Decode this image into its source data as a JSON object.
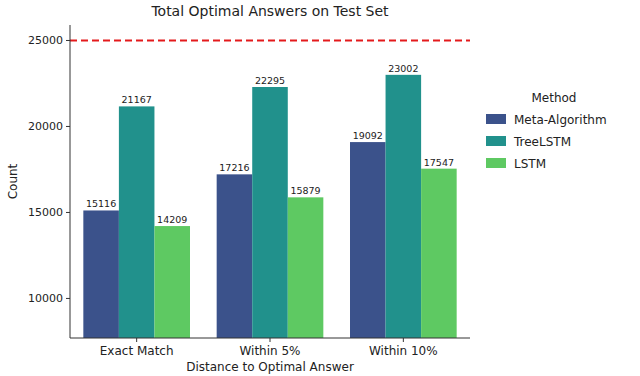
{
  "chart_data": {
    "type": "bar",
    "title": "Total Optimal Answers on Test Set",
    "x_label": "Distance to Optimal Answer",
    "y_label": "Count",
    "categories": [
      "Exact Match",
      "Within 5%",
      "Within 10%"
    ],
    "series": [
      {
        "name": "Meta-Algorithm",
        "color": "#3b528b",
        "values": [
          15116,
          17216,
          19092
        ]
      },
      {
        "name": "TreeLSTM",
        "color": "#21918c",
        "values": [
          21167,
          22295,
          23002
        ]
      },
      {
        "name": "LSTM",
        "color": "#5ec962",
        "values": [
          14209,
          15879,
          17547
        ]
      }
    ],
    "ylim": [
      7700,
      25900
    ],
    "yticks": [
      10000,
      15000,
      20000,
      25000
    ],
    "reference_lines": [
      {
        "value": 25000,
        "color": "#e41a1c",
        "line_style": "dashed"
      }
    ],
    "data_labels": true,
    "legend": "right",
    "legend_title": "Method",
    "grid": false
  }
}
